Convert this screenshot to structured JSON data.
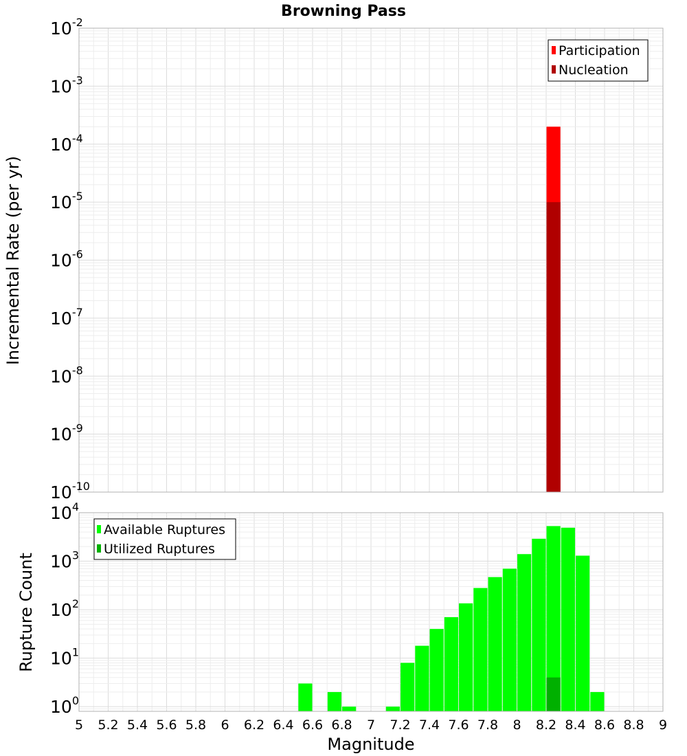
{
  "chart_data": [
    {
      "type": "bar",
      "title": "Browning Pass",
      "xlabel": "",
      "ylabel": "Incremental Rate (per yr)",
      "yscale": "log",
      "ylim": [
        1e-10,
        0.01
      ],
      "xlim": [
        5,
        9
      ],
      "grid": true,
      "legend_position": "top-right",
      "ytick_labels": [
        {
          "base": "10",
          "exp": "-10"
        },
        {
          "base": "10",
          "exp": "-9"
        },
        {
          "base": "10",
          "exp": "-8"
        },
        {
          "base": "10",
          "exp": "-7"
        },
        {
          "base": "10",
          "exp": "-6"
        },
        {
          "base": "10",
          "exp": "-5"
        },
        {
          "base": "10",
          "exp": "-4"
        },
        {
          "base": "10",
          "exp": "-3"
        },
        {
          "base": "10",
          "exp": "-2"
        }
      ],
      "series": [
        {
          "name": "Participation",
          "color": "#ff0000",
          "points": [
            {
              "x": 8.25,
              "y": 0.0002
            }
          ]
        },
        {
          "name": "Nucleation",
          "color": "#b00000",
          "points": [
            {
              "x": 8.25,
              "y": 1e-05
            }
          ]
        }
      ]
    },
    {
      "type": "bar",
      "xlabel": "Magnitude",
      "ylabel": "Rupture Count",
      "yscale": "log",
      "ylim": [
        0.8,
        10000
      ],
      "xlim": [
        5,
        9
      ],
      "grid": true,
      "legend_position": "top-left",
      "xticks": [
        "5",
        "5.2",
        "5.4",
        "5.6",
        "5.8",
        "6",
        "6.2",
        "6.4",
        "6.6",
        "6.8",
        "7",
        "7.2",
        "7.4",
        "7.6",
        "7.8",
        "8",
        "8.2",
        "8.4",
        "8.6",
        "8.8",
        "9"
      ],
      "ytick_labels": [
        {
          "base": "10",
          "exp": "0"
        },
        {
          "base": "10",
          "exp": "1"
        },
        {
          "base": "10",
          "exp": "2"
        },
        {
          "base": "10",
          "exp": "3"
        },
        {
          "base": "10",
          "exp": "4"
        }
      ],
      "series": [
        {
          "name": "Available Ruptures",
          "color": "#00ff00",
          "points": [
            {
              "x": 6.55,
              "y": 3
            },
            {
              "x": 6.75,
              "y": 2
            },
            {
              "x": 6.85,
              "y": 1
            },
            {
              "x": 7.15,
              "y": 1
            },
            {
              "x": 7.25,
              "y": 8
            },
            {
              "x": 7.35,
              "y": 18
            },
            {
              "x": 7.45,
              "y": 40
            },
            {
              "x": 7.55,
              "y": 70
            },
            {
              "x": 7.65,
              "y": 135
            },
            {
              "x": 7.75,
              "y": 280
            },
            {
              "x": 7.85,
              "y": 470
            },
            {
              "x": 7.95,
              "y": 700
            },
            {
              "x": 8.05,
              "y": 1400
            },
            {
              "x": 8.15,
              "y": 2900
            },
            {
              "x": 8.25,
              "y": 5300
            },
            {
              "x": 8.35,
              "y": 4900
            },
            {
              "x": 8.45,
              "y": 1300
            },
            {
              "x": 8.55,
              "y": 2
            }
          ]
        },
        {
          "name": "Utilized Ruptures",
          "color": "#00b000",
          "points": [
            {
              "x": 8.25,
              "y": 4
            }
          ]
        }
      ]
    }
  ]
}
